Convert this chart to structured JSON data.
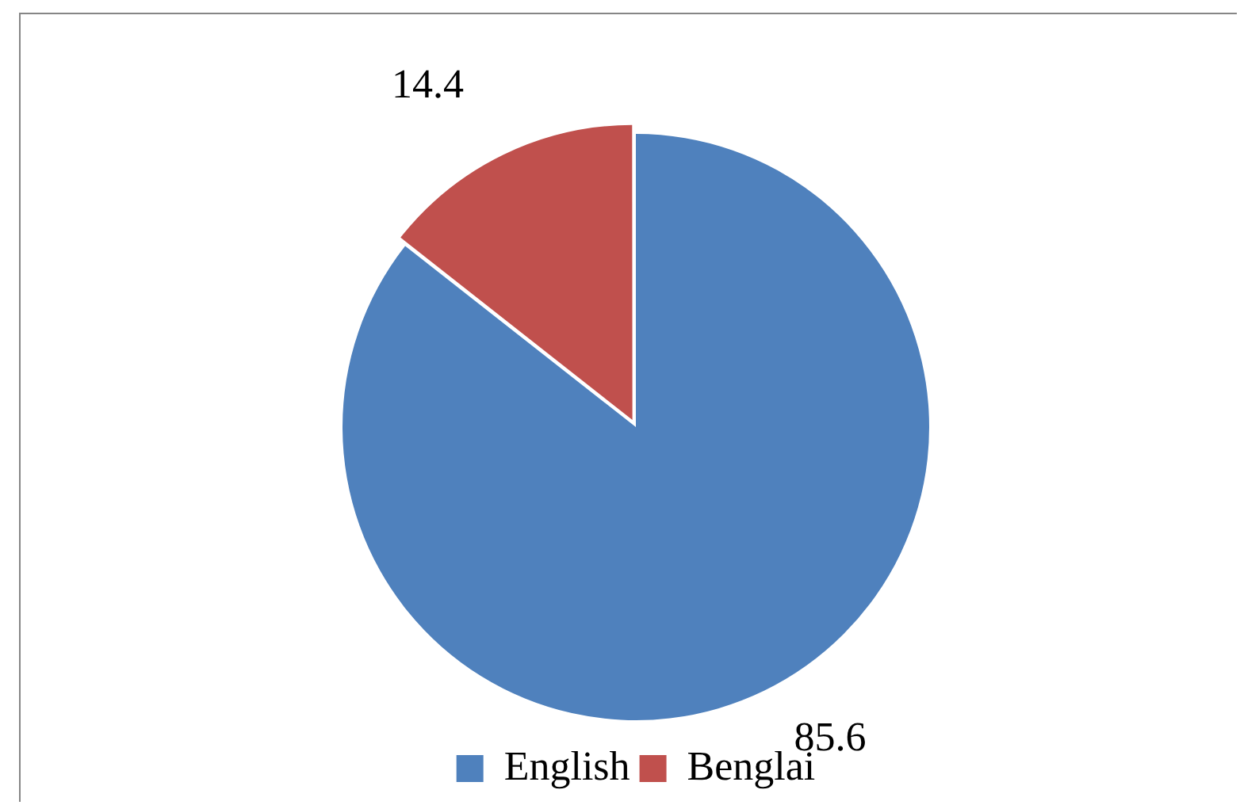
{
  "chart_data": {
    "type": "pie",
    "categories": [
      "English",
      "Benglai"
    ],
    "values": [
      85.6,
      14.4
    ],
    "colors": [
      "#4f81bd",
      "#c0504d"
    ],
    "data_labels": true,
    "legend": "bottom"
  }
}
